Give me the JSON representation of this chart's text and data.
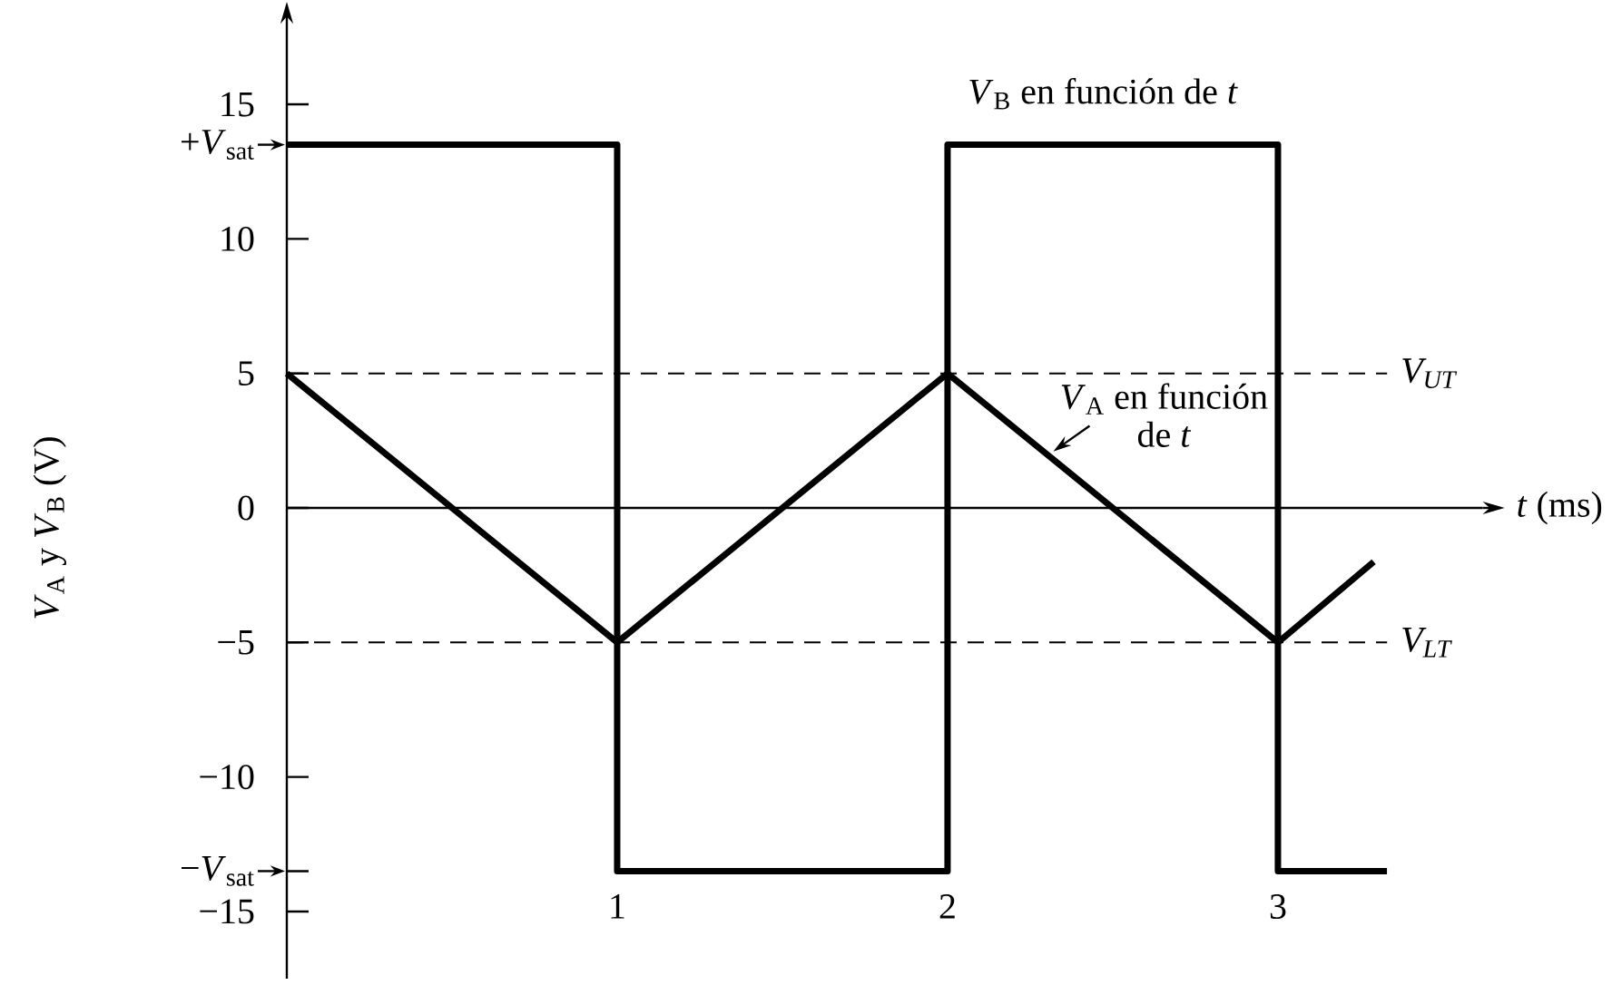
{
  "chart_data": {
    "type": "line",
    "xlabel": "*t* (ms)",
    "ylabel": "*V*$_{A}$ y *V*$_{B}$ (V)",
    "xlim": [
      0,
      3.62
    ],
    "ylim": [
      -17.5,
      18
    ],
    "xticks": [
      1,
      2,
      3
    ],
    "yticks": [
      {
        "value": -15,
        "label": "−15"
      },
      {
        "value": -13.5,
        "label": "−*V*$_{sat}$"
      },
      {
        "value": -10,
        "label": "−10"
      },
      {
        "value": -5,
        "label": "−5"
      },
      0,
      5,
      10,
      {
        "value": 13.5,
        "label": "+*V*$_{sat}$"
      },
      15
    ],
    "marker": "none",
    "line_style": "solid",
    "series": [
      {
        "name": "*V*$_{B}$ en función de *t*",
        "type": "step",
        "color": "#000000",
        "x": [
          0,
          1,
          2,
          3,
          3.33
        ],
        "values": [
          13.5,
          -13.5,
          13.5,
          -13.5,
          -13.5
        ]
      },
      {
        "name": "*V*$_{A}$ en función de *t*",
        "color": "#000000",
        "x": [
          0,
          1,
          2,
          3,
          3.29
        ],
        "values": [
          5,
          -5,
          5,
          -5,
          -2
        ]
      }
    ],
    "ref_lines": [
      {
        "axis": "y",
        "value": 5,
        "label": "V$_{UT}$",
        "line_style": "dashed",
        "color": "#000000"
      },
      {
        "axis": "y",
        "value": -5,
        "label": "V$_{LT}$",
        "line_style": "dashed",
        "color": "#000000"
      }
    ]
  }
}
